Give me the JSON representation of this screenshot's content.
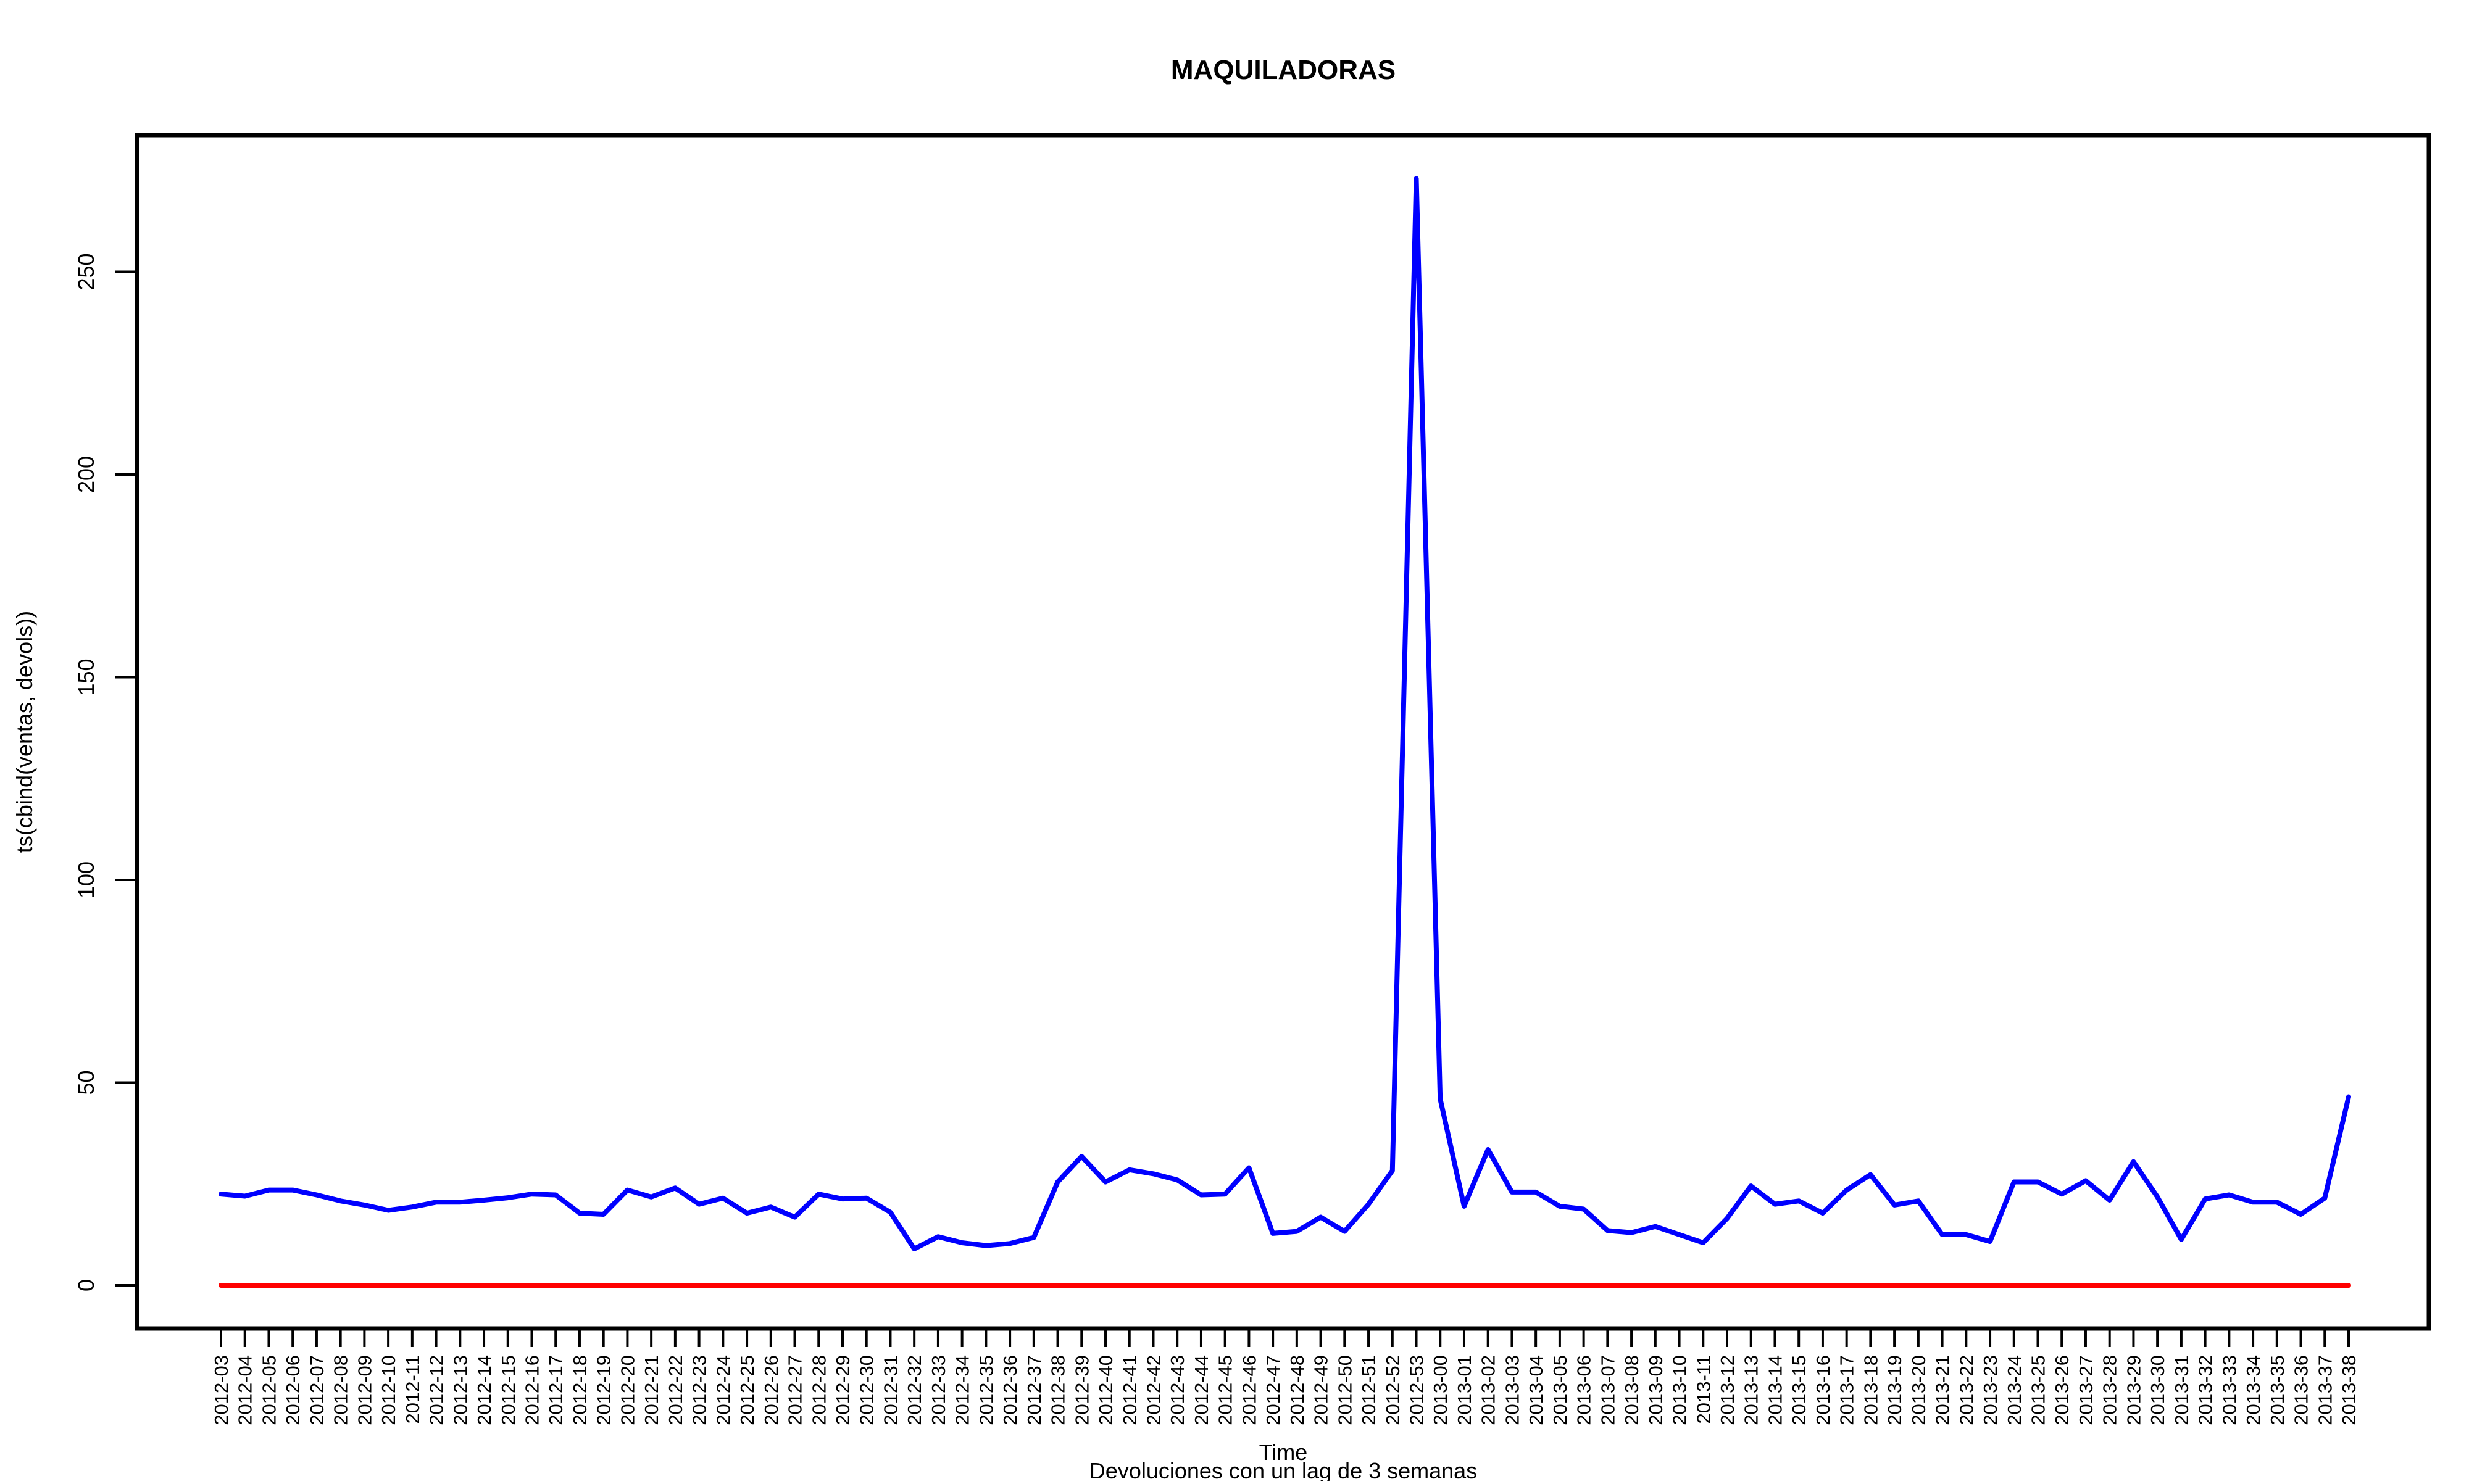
{
  "chart_data": {
    "type": "line",
    "title": "MAQUILADORAS",
    "xlabel": "Time",
    "ylabel": "ts(cbind(ventas, devols))",
    "subtitle": "Devoluciones con un lag de 3 semanas",
    "ylim": [
      0,
      273
    ],
    "yticks": [
      0,
      50,
      100,
      150,
      200,
      250
    ],
    "grid": false,
    "legend": "none",
    "categories": [
      "2012-03",
      "2012-04",
      "2012-05",
      "2012-06",
      "2012-07",
      "2012-08",
      "2012-09",
      "2012-10",
      "2012-11",
      "2012-12",
      "2012-13",
      "2012-14",
      "2012-15",
      "2012-16",
      "2012-17",
      "2012-18",
      "2012-19",
      "2012-20",
      "2012-21",
      "2012-22",
      "2012-23",
      "2012-24",
      "2012-25",
      "2012-26",
      "2012-27",
      "2012-28",
      "2012-29",
      "2012-30",
      "2012-31",
      "2012-32",
      "2012-33",
      "2012-34",
      "2012-35",
      "2012-36",
      "2012-37",
      "2012-38",
      "2012-39",
      "2012-40",
      "2012-41",
      "2012-42",
      "2012-43",
      "2012-44",
      "2012-45",
      "2012-46",
      "2012-47",
      "2012-48",
      "2012-49",
      "2012-50",
      "2012-51",
      "2012-52",
      "2012-53",
      "2013-00",
      "2013-01",
      "2013-02",
      "2013-03",
      "2013-04",
      "2013-05",
      "2013-06",
      "2013-07",
      "2013-08",
      "2013-09",
      "2013-10",
      "2013-11",
      "2013-12",
      "2013-13",
      "2013-14",
      "2013-15",
      "2013-16",
      "2013-17",
      "2013-18",
      "2013-19",
      "2013-20",
      "2013-21",
      "2013-22",
      "2013-23",
      "2013-24",
      "2013-25",
      "2013-26",
      "2013-27",
      "2013-28",
      "2013-29",
      "2013-30",
      "2013-31",
      "2013-32",
      "2013-33",
      "2013-34",
      "2013-35",
      "2013-36",
      "2013-37",
      "2013-38"
    ],
    "series": [
      {
        "color": "#0000ff",
        "values": [
          22.5,
          22,
          23.5,
          23.5,
          22.3,
          20.8,
          19.8,
          18.5,
          19.3,
          20.5,
          20.5,
          21,
          21.6,
          22.5,
          22.3,
          17.8,
          17.5,
          23.5,
          21.8,
          24,
          20,
          21.5,
          17.8,
          19.3,
          16.8,
          22.5,
          21.3,
          21.5,
          18,
          9,
          12,
          10.5,
          9.8,
          10.3,
          11.8,
          25.5,
          31.8,
          25.5,
          28.5,
          27.5,
          26,
          22.3,
          22.5,
          29,
          12.8,
          13.3,
          16.8,
          13.3,
          20,
          28.3,
          273,
          46,
          19.5,
          33.5,
          23,
          23,
          19.5,
          18.8,
          13.5,
          13,
          14.5,
          12.5,
          10.5,
          16.5,
          24.5,
          20,
          20.8,
          17.8,
          23.5,
          27.3,
          19.8,
          20.8,
          12.5,
          12.5,
          10.8,
          25.5,
          25.5,
          22.5,
          25.8,
          21,
          30.5,
          21.8,
          11.3,
          21.3,
          22.3,
          20.5,
          20.5,
          17.5,
          21.5,
          46.5
        ]
      },
      {
        "color": "#ff0000",
        "values": [
          0,
          0,
          0,
          0,
          0,
          0,
          0,
          0,
          0,
          0,
          0,
          0,
          0,
          0,
          0,
          0,
          0,
          0,
          0,
          0,
          0,
          0,
          0,
          0,
          0,
          0,
          0,
          0,
          0,
          0,
          0,
          0,
          0,
          0,
          0,
          0,
          0,
          0,
          0,
          0,
          0,
          0,
          0,
          0,
          0,
          0,
          0,
          0,
          0,
          0,
          0,
          0,
          0,
          0,
          0,
          0,
          0,
          0,
          0,
          0,
          0,
          0,
          0,
          0,
          0,
          0,
          0,
          0,
          0,
          0,
          0,
          0,
          0,
          0,
          0,
          0,
          0,
          0,
          0,
          0,
          0,
          0,
          0,
          0,
          0,
          0,
          0,
          0,
          0,
          0
        ]
      }
    ]
  }
}
